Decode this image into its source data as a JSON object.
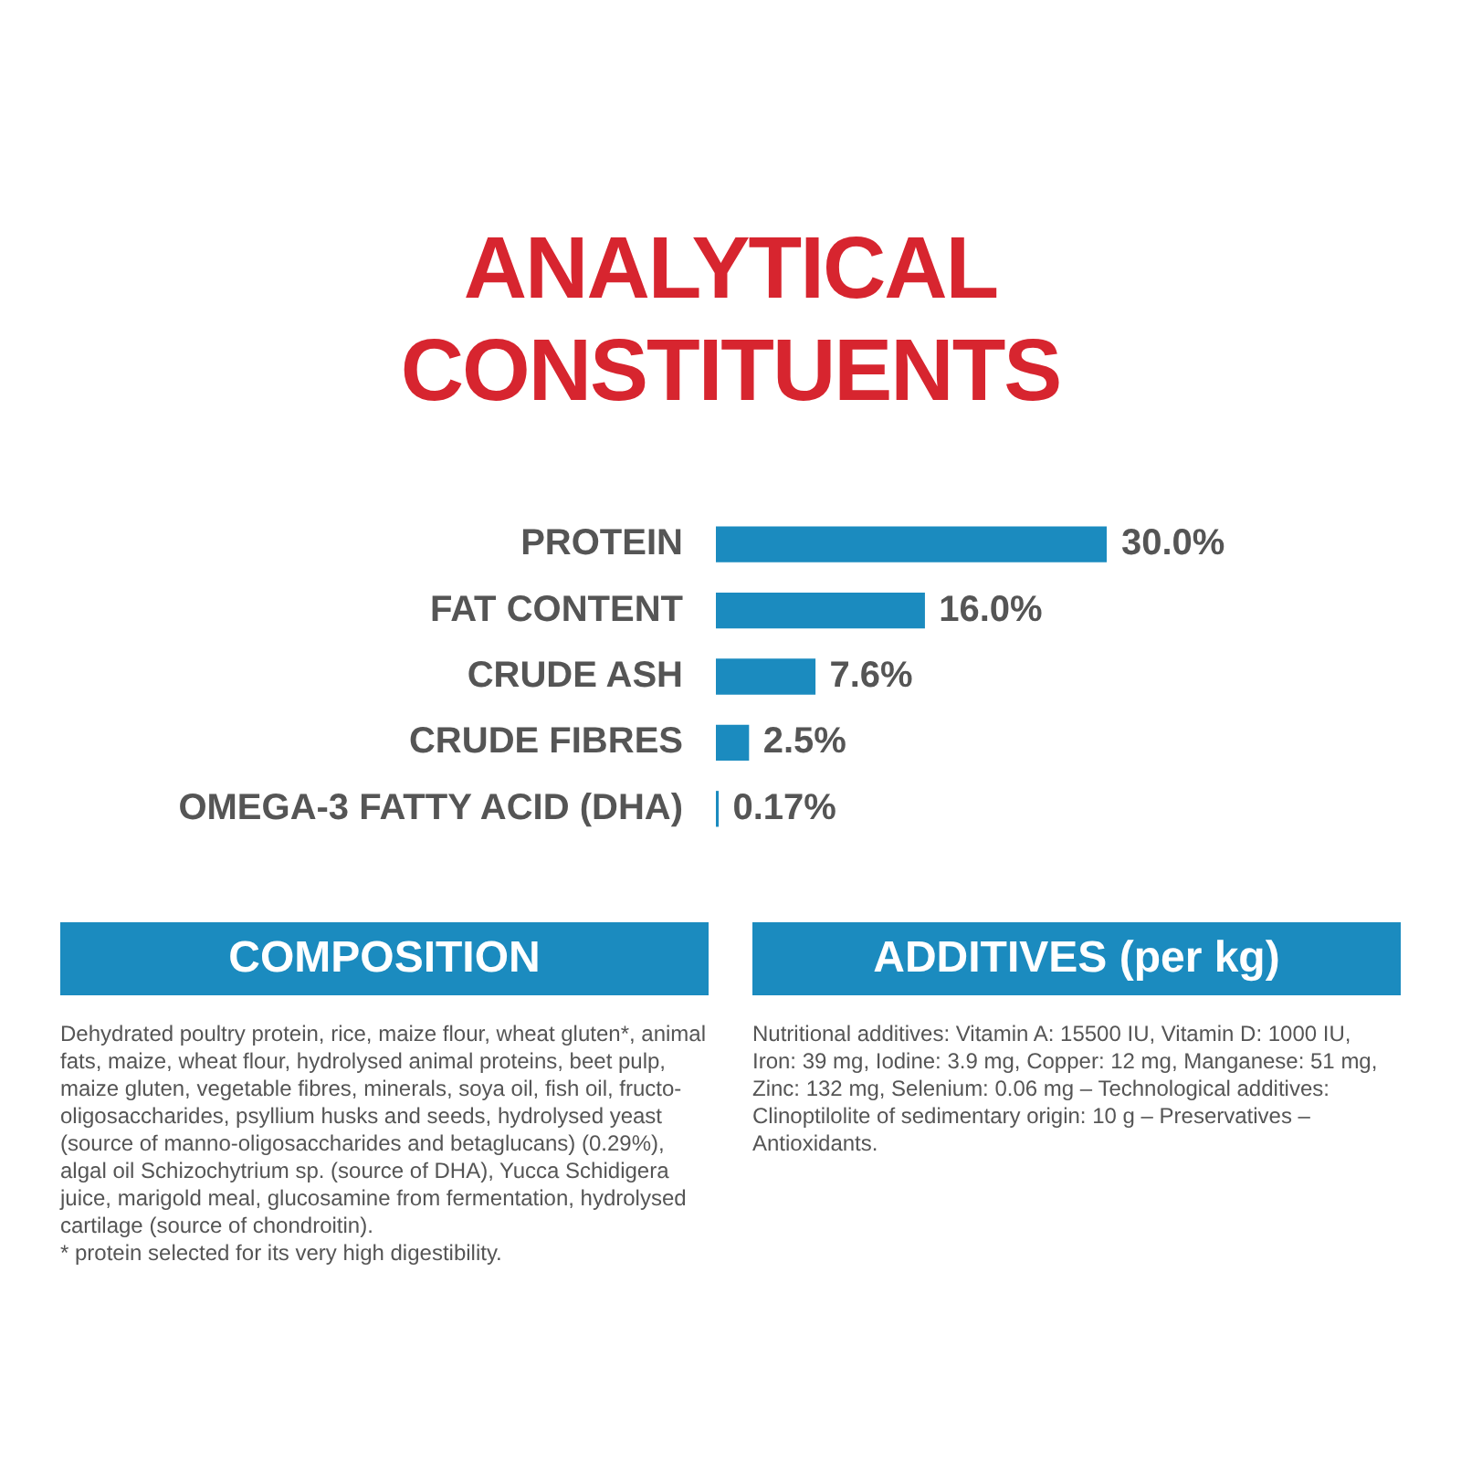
{
  "chart_data": {
    "type": "bar",
    "orientation": "horizontal",
    "title": "ANALYTICAL CONSTITUENTS",
    "categories": [
      "PROTEIN",
      "FAT CONTENT",
      "CRUDE ASH",
      "CRUDE FIBRES",
      "OMEGA-3 FATTY ACID (DHA)"
    ],
    "values": [
      30.0,
      16.0,
      7.6,
      2.5,
      0.17
    ],
    "value_labels": [
      "30.0%",
      "16.0%",
      "7.6%",
      "2.5%",
      "0.17%"
    ],
    "color": "#1b8bbf",
    "annotations": [
      "COMPOSITION",
      "Dehydrated poultry protein, rice, maize flour, wheat gluten*, animal fats, maize, wheat flour, hydrolysed animal proteins, beet pulp, maize gluten, vegetable fibres, minerals, soya oil, fish oil, fructo-oligosaccharides, psyllium husks and seeds, hydrolysed yeast (source of manno-oligosaccharides and betaglucans) (0.29%), algal oil Schizochytrium sp. (source of DHA), Yucca Schidigera juice, marigold meal, glucosamine from fermentation, hydrolysed cartilage (source of chondroitin).\n* protein selected for its very high digestibility.",
      "ADDITIVES (per kg)",
      "Nutritional additives: Vitamin A: 15500 IU, Vitamin D: 1000 IU, Iron: 39 mg, Iodine: 3.9 mg, Copper: 12 mg, Manganese: 51 mg, Zinc: 132 mg, Selenium: 0.06 mg – Technological additives: Clinoptilolite of sedimentary origin: 10 g – Preservatives – Antioxidants."
    ]
  }
}
